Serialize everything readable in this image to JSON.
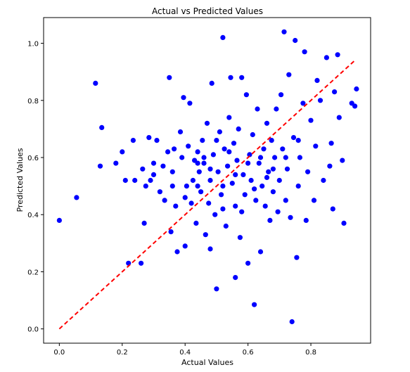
{
  "chart_data": {
    "type": "scatter",
    "title": "Actual vs Predicted Values",
    "xlabel": "Actual Values",
    "ylabel": "Predicted Values",
    "xlim": [
      -0.05,
      0.99
    ],
    "ylim": [
      -0.05,
      1.09
    ],
    "xticks": [
      "0.0",
      "0.2",
      "0.4",
      "0.6",
      "0.8"
    ],
    "yticks": [
      "0.0",
      "0.2",
      "0.4",
      "0.6",
      "0.8",
      "1.0"
    ],
    "xtick_values": [
      0.0,
      0.2,
      0.4,
      0.6,
      0.8
    ],
    "ytick_values": [
      0.0,
      0.2,
      0.4,
      0.6,
      0.8,
      1.0
    ],
    "grid": false,
    "legend": "none",
    "point_color": "#0000ff",
    "reference_line": {
      "style": "dashed",
      "color": "#ff0000",
      "x": [
        0.0,
        0.94
      ],
      "y": [
        0.0,
        0.94
      ]
    },
    "series": [
      {
        "points": [
          [
            0.0,
            0.38
          ],
          [
            0.055,
            0.46
          ],
          [
            0.115,
            0.86
          ],
          [
            0.13,
            0.57
          ],
          [
            0.135,
            0.705
          ],
          [
            0.18,
            0.58
          ],
          [
            0.2,
            0.62
          ],
          [
            0.21,
            0.52
          ],
          [
            0.22,
            0.23
          ],
          [
            0.235,
            0.66
          ],
          [
            0.24,
            0.52
          ],
          [
            0.26,
            0.23
          ],
          [
            0.265,
            0.56
          ],
          [
            0.27,
            0.37
          ],
          [
            0.275,
            0.5
          ],
          [
            0.285,
            0.67
          ],
          [
            0.29,
            0.52
          ],
          [
            0.3,
            0.58
          ],
          [
            0.31,
            0.66
          ],
          [
            0.32,
            0.48
          ],
          [
            0.33,
            0.57
          ],
          [
            0.335,
            0.45
          ],
          [
            0.345,
            0.62
          ],
          [
            0.35,
            0.88
          ],
          [
            0.355,
            0.34
          ],
          [
            0.36,
            0.55
          ],
          [
            0.365,
            0.63
          ],
          [
            0.37,
            0.43
          ],
          [
            0.375,
            0.27
          ],
          [
            0.385,
            0.69
          ],
          [
            0.39,
            0.6
          ],
          [
            0.395,
            0.81
          ],
          [
            0.4,
            0.29
          ],
          [
            0.405,
            0.5
          ],
          [
            0.41,
            0.64
          ],
          [
            0.415,
            0.79
          ],
          [
            0.42,
            0.44
          ],
          [
            0.425,
            0.52
          ],
          [
            0.43,
            0.59
          ],
          [
            0.435,
            0.37
          ],
          [
            0.44,
            0.62
          ],
          [
            0.445,
            0.55
          ],
          [
            0.45,
            0.48
          ],
          [
            0.455,
            0.66
          ],
          [
            0.46,
            0.58
          ],
          [
            0.465,
            0.33
          ],
          [
            0.47,
            0.72
          ],
          [
            0.475,
            0.44
          ],
          [
            0.48,
            0.52
          ],
          [
            0.485,
            0.86
          ],
          [
            0.49,
            0.61
          ],
          [
            0.495,
            0.4
          ],
          [
            0.5,
            0.14
          ],
          [
            0.505,
            0.55
          ],
          [
            0.51,
            0.69
          ],
          [
            0.515,
            0.47
          ],
          [
            0.52,
            1.02
          ],
          [
            0.525,
            0.63
          ],
          [
            0.53,
            0.36
          ],
          [
            0.535,
            0.57
          ],
          [
            0.54,
            0.74
          ],
          [
            0.545,
            0.88
          ],
          [
            0.55,
            0.51
          ],
          [
            0.555,
            0.65
          ],
          [
            0.56,
            0.43
          ],
          [
            0.565,
            0.59
          ],
          [
            0.57,
            0.7
          ],
          [
            0.575,
            0.32
          ],
          [
            0.58,
            0.88
          ],
          [
            0.585,
            0.54
          ],
          [
            0.59,
            0.47
          ],
          [
            0.595,
            0.82
          ],
          [
            0.6,
            0.23
          ],
          [
            0.605,
            0.61
          ],
          [
            0.61,
            0.52
          ],
          [
            0.615,
            0.68
          ],
          [
            0.62,
            0.085
          ],
          [
            0.625,
            0.45
          ],
          [
            0.63,
            0.77
          ],
          [
            0.635,
            0.58
          ],
          [
            0.64,
            0.27
          ],
          [
            0.645,
            0.5
          ],
          [
            0.65,
            0.63
          ],
          [
            0.655,
            0.43
          ],
          [
            0.66,
            0.72
          ],
          [
            0.665,
            0.55
          ],
          [
            0.67,
            0.38
          ],
          [
            0.675,
            0.66
          ],
          [
            0.68,
            0.48
          ],
          [
            0.685,
            0.6
          ],
          [
            0.69,
            0.77
          ],
          [
            0.695,
            0.41
          ],
          [
            0.7,
            0.52
          ],
          [
            0.705,
            0.82
          ],
          [
            0.71,
            0.63
          ],
          [
            0.715,
            1.04
          ],
          [
            0.72,
            0.45
          ],
          [
            0.725,
            0.56
          ],
          [
            0.73,
            0.89
          ],
          [
            0.735,
            0.39
          ],
          [
            0.74,
            0.025
          ],
          [
            0.745,
            0.67
          ],
          [
            0.75,
            1.01
          ],
          [
            0.755,
            0.25
          ],
          [
            0.76,
            0.5
          ],
          [
            0.765,
            0.6
          ],
          [
            0.775,
            0.79
          ],
          [
            0.78,
            0.97
          ],
          [
            0.785,
            0.38
          ],
          [
            0.79,
            0.55
          ],
          [
            0.8,
            0.73
          ],
          [
            0.81,
            0.45
          ],
          [
            0.815,
            0.64
          ],
          [
            0.82,
            0.87
          ],
          [
            0.83,
            0.8
          ],
          [
            0.84,
            0.52
          ],
          [
            0.85,
            0.95
          ],
          [
            0.86,
            0.57
          ],
          [
            0.865,
            0.65
          ],
          [
            0.87,
            0.42
          ],
          [
            0.875,
            0.83
          ],
          [
            0.885,
            0.96
          ],
          [
            0.89,
            0.74
          ],
          [
            0.9,
            0.59
          ],
          [
            0.905,
            0.37
          ],
          [
            0.93,
            0.79
          ],
          [
            0.94,
            0.78
          ],
          [
            0.945,
            0.84
          ],
          [
            0.56,
            0.18
          ],
          [
            0.48,
            0.28
          ],
          [
            0.52,
            0.42
          ],
          [
            0.58,
            0.41
          ],
          [
            0.62,
            0.49
          ],
          [
            0.66,
            0.53
          ],
          [
            0.44,
            0.5
          ],
          [
            0.4,
            0.46
          ],
          [
            0.46,
            0.6
          ],
          [
            0.5,
            0.66
          ],
          [
            0.54,
            0.62
          ],
          [
            0.6,
            0.58
          ],
          [
            0.64,
            0.6
          ],
          [
            0.68,
            0.56
          ],
          [
            0.72,
            0.6
          ],
          [
            0.76,
            0.66
          ],
          [
            0.56,
            0.54
          ],
          [
            0.52,
            0.5
          ],
          [
            0.48,
            0.56
          ],
          [
            0.44,
            0.58
          ],
          [
            0.36,
            0.5
          ],
          [
            0.3,
            0.54
          ]
        ]
      }
    ]
  }
}
